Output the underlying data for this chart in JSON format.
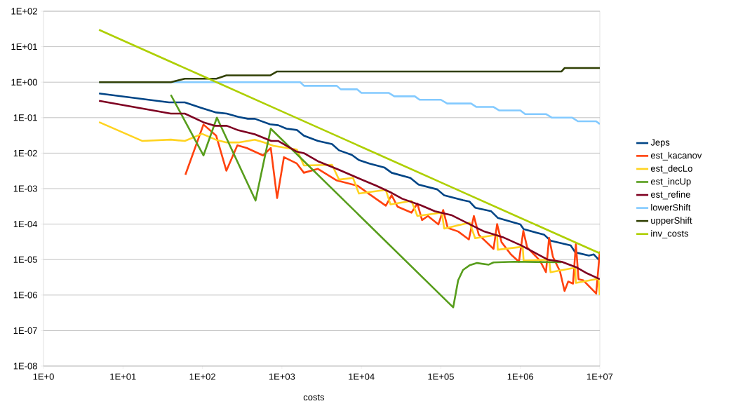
{
  "chart_data": {
    "type": "line",
    "xlabel": "costs",
    "log": "xy",
    "grid": "y",
    "legend": "right",
    "marker": "none",
    "line_style": "solid",
    "xlim": [
      1,
      10000000
    ],
    "ylim": [
      1e-08,
      100
    ],
    "xticks": [
      {
        "value": 1,
        "label": "1E+0"
      },
      {
        "value": 10,
        "label": "1E+01"
      },
      {
        "value": 100,
        "label": "1E+02"
      },
      {
        "value": 1000,
        "label": "1E+03"
      },
      {
        "value": 10000,
        "label": "1E+04"
      },
      {
        "value": 100000,
        "label": "1E+05"
      },
      {
        "value": 1000000,
        "label": "1E+06"
      },
      {
        "value": 10000000,
        "label": "1E+07"
      }
    ],
    "yticks": [
      {
        "value": 1e-08,
        "label": "1E-08"
      },
      {
        "value": 1e-07,
        "label": "1E-07"
      },
      {
        "value": 1e-06,
        "label": "1E-06"
      },
      {
        "value": 1e-05,
        "label": "1E-05"
      },
      {
        "value": 0.0001,
        "label": "1E-04"
      },
      {
        "value": 0.001,
        "label": "1E-03"
      },
      {
        "value": 0.01,
        "label": "1E-02"
      },
      {
        "value": 0.1,
        "label": "1E-01"
      },
      {
        "value": 1,
        "label": "1E+00"
      },
      {
        "value": 10,
        "label": "1E+01"
      },
      {
        "value": 100,
        "label": "1E+02"
      }
    ],
    "series": [
      {
        "name": "Jeps",
        "color": "#004586",
        "x": [
          5,
          38,
          60,
          96,
          149,
          202,
          284,
          372,
          456,
          709,
          900,
          1140,
          1540,
          1890,
          2840,
          4270,
          5230,
          7600,
          9300,
          12600,
          19600,
          24000,
          41300,
          52400,
          90000,
          110000,
          190000,
          230000,
          270000,
          430000,
          520000,
          1000000,
          1100000,
          2000000,
          2400000,
          4300000,
          4900000,
          7300000,
          8400000,
          10000000
        ],
        "values": [
          0.48,
          0.27,
          0.27,
          0.19,
          0.14,
          0.13,
          0.105,
          0.093,
          0.093,
          0.065,
          0.061,
          0.049,
          0.045,
          0.031,
          0.022,
          0.018,
          0.012,
          0.0089,
          0.0064,
          0.0051,
          0.0039,
          0.0028,
          0.002,
          0.0013,
          0.00095,
          0.00065,
          0.00047,
          0.00043,
          0.00029,
          0.00023,
          0.00015,
          9.8e-05,
          7.2e-05,
          5e-05,
          3.4e-05,
          2.5e-05,
          1.6e-05,
          1.3e-05,
          1.4e-05,
          9.3e-06
        ]
      },
      {
        "name": "est_kacanov",
        "color": "#ff420e",
        "x": [
          61,
          103,
          149,
          200,
          275,
          360,
          580,
          724,
          870,
          1060,
          1540,
          1890,
          2840,
          4890,
          9000,
          12600,
          20300,
          24000,
          28500,
          42700,
          50600,
          58000,
          68700,
          93000,
          107000,
          122000,
          165000,
          225000,
          260000,
          300000,
          460000,
          510000,
          580000,
          760000,
          960000,
          1090000,
          1220000,
          1770000,
          2100000,
          2300000,
          2570000,
          3150000,
          3600000,
          4000000,
          4600000,
          5000000,
          5400000,
          6200000,
          9000000,
          10000000
        ],
        "values": [
          0.00245,
          0.064,
          0.031,
          0.0032,
          0.0166,
          0.014,
          0.0086,
          0.014,
          0.00054,
          0.0077,
          0.0051,
          0.0028,
          0.0036,
          0.0017,
          0.0012,
          0.0007,
          0.00033,
          0.00065,
          0.00031,
          0.00021,
          0.00038,
          0.00013,
          0.00017,
          9.8e-05,
          0.00025,
          7.8e-05,
          6.2e-05,
          3.7e-05,
          0.00017,
          5e-05,
          2e-05,
          0.0001,
          3.1e-05,
          1.4e-05,
          8.7e-06,
          6.4e-05,
          2.2e-05,
          9.3e-06,
          4.4e-06,
          4.1e-05,
          1.2e-05,
          4.7e-06,
          1.3e-06,
          2.4e-06,
          2.1e-06,
          2.7e-05,
          2.8e-06,
          2.6e-06,
          1.1e-06,
          1.7e-05
        ]
      },
      {
        "name": "est_decLo",
        "color": "#ffd320",
        "x": [
          5,
          17.6,
          40,
          60,
          99,
          154,
          202,
          284,
          456,
          600,
          785,
          1540,
          1890,
          4270,
          5230,
          7850,
          9300,
          20300,
          23200,
          42700,
          50600,
          103000,
          110000,
          230000,
          270000,
          510000,
          520000,
          1070000,
          1100000,
          2300000,
          2400000,
          4900000,
          5000000,
          9600000,
          10000000
        ],
        "values": [
          0.075,
          0.022,
          0.024,
          0.022,
          0.035,
          0.023,
          0.02,
          0.02,
          0.024,
          0.02,
          0.016,
          0.0126,
          0.0045,
          0.0047,
          0.0018,
          0.002,
          0.00073,
          0.00092,
          0.00036,
          0.00045,
          0.00017,
          0.00021,
          7.5e-05,
          0.00011,
          4e-05,
          5e-05,
          1.9e-05,
          2.3e-05,
          9.3e-06,
          1e-05,
          4.4e-06,
          5.9e-06,
          2.2e-06,
          2.9e-06,
          1e-06
        ]
      },
      {
        "name": "est_incUp",
        "color": "#579d1c",
        "x": [
          40,
          103,
          152,
          466,
          724,
          143000,
          165000,
          190000,
          230000,
          285000,
          400000,
          460000,
          840000,
          3300000
        ],
        "values": [
          0.44,
          0.0086,
          0.1,
          0.00046,
          0.049,
          4.5e-07,
          2.6e-06,
          5.1e-06,
          6.9e-06,
          8e-06,
          7.2e-06,
          8.3e-06,
          8.7e-06,
          8.4e-06
        ]
      },
      {
        "name": "est_refine",
        "color": "#7e0021",
        "x": [
          5,
          40,
          60,
          103,
          145,
          202,
          284,
          456,
          734,
          900,
          1540,
          1890,
          2840,
          5060,
          9000,
          15500,
          24000,
          32600,
          56000,
          84000,
          135000,
          350000,
          600000,
          1030000,
          2200000,
          3300000,
          5200000,
          6900000,
          10000000
        ],
        "values": [
          0.3,
          0.13,
          0.13,
          0.074,
          0.059,
          0.059,
          0.044,
          0.034,
          0.022,
          0.022,
          0.011,
          0.01,
          0.0059,
          0.0035,
          0.002,
          0.0012,
          0.00076,
          0.00052,
          0.00034,
          0.00023,
          0.00018,
          6.2e-05,
          4.3e-05,
          2.5e-05,
          1e-05,
          8.7e-06,
          5.9e-06,
          4.1e-06,
          2.8e-06
        ]
      },
      {
        "name": "lowerShift",
        "color": "#83caff",
        "x": [
          5,
          1700,
          1900,
          4900,
          5500,
          8800,
          10000,
          22000,
          26000,
          47000,
          54000,
          100000,
          120000,
          240000,
          280000,
          460000,
          540000,
          1000000,
          1150000,
          2100000,
          2500000,
          4500000,
          5300000,
          9000000,
          10000000
        ],
        "values": [
          1,
          1,
          0.79,
          0.79,
          0.63,
          0.63,
          0.5,
          0.5,
          0.4,
          0.4,
          0.32,
          0.32,
          0.25,
          0.25,
          0.2,
          0.2,
          0.16,
          0.16,
          0.126,
          0.126,
          0.1,
          0.1,
          0.079,
          0.079,
          0.066
        ]
      },
      {
        "name": "upperShift",
        "color": "#314004",
        "x": [
          5,
          40,
          60,
          150,
          200,
          710,
          870,
          3300000,
          3600000,
          10000000
        ],
        "values": [
          1,
          1,
          1.25,
          1.25,
          1.55,
          1.55,
          2,
          2,
          2.5,
          2.5
        ]
      },
      {
        "name": "inv_costs",
        "color": "#aecf00",
        "x": [
          5,
          10,
          100,
          1000,
          10000,
          100000,
          1000000,
          10000000
        ],
        "values": [
          30,
          15,
          1.5,
          0.15,
          0.015,
          0.0015,
          0.00015,
          1.5e-05
        ]
      }
    ]
  }
}
